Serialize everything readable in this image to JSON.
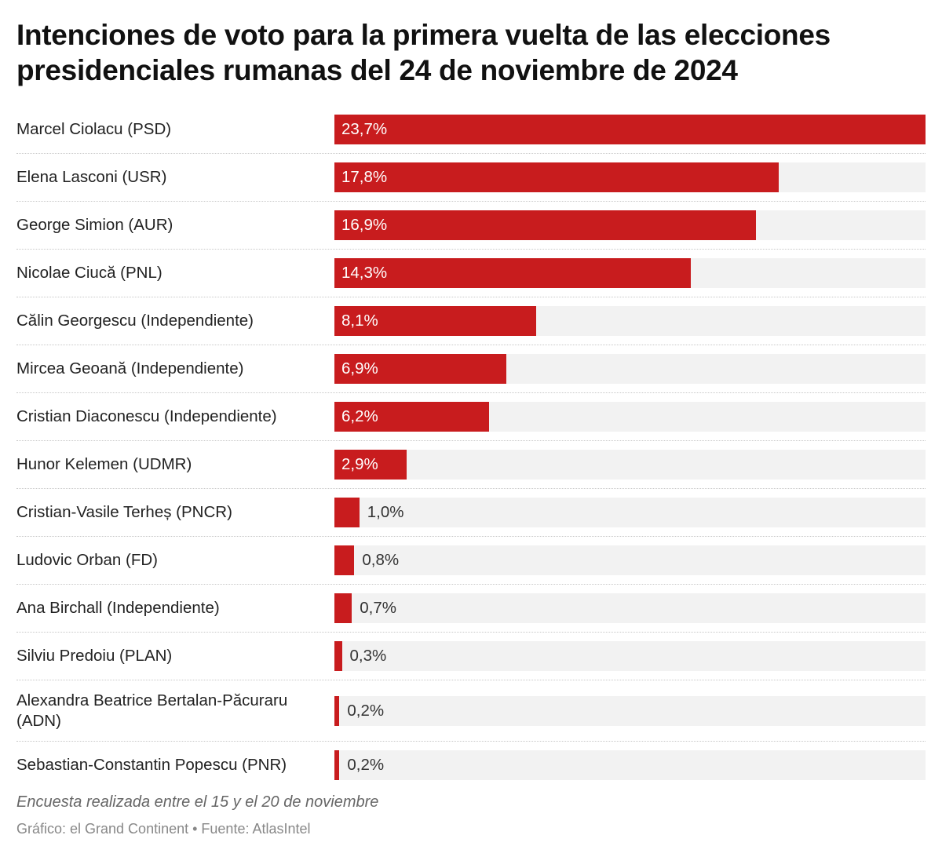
{
  "title": "Intenciones de voto para la primera vuelta de las elecciones presidenciales rumanas del 24 de noviembre de 2024",
  "note": "Encuesta realizada entre el 15 y el 20 de noviembre",
  "source": "Gráfico: el Grand Continent • Fuente: AtlasIntel",
  "colors": {
    "bar": "#c81c1e",
    "track": "#f2f2f2"
  },
  "chart_data": {
    "type": "bar",
    "orientation": "horizontal",
    "title": "Intenciones de voto para la primera vuelta de las elecciones presidenciales rumanas del 24 de noviembre de 2024",
    "xlabel": "",
    "ylabel": "",
    "unit": "%",
    "xlim": [
      0,
      23.7
    ],
    "grid": false,
    "categories": [
      "Marcel Ciolacu (PSD)",
      "Elena Lasconi (USR)",
      "George Simion (AUR)",
      "Nicolae Ciucă (PNL)",
      "Călin Georgescu (Independiente)",
      "Mircea Geoană (Independiente)",
      "Cristian Diaconescu (Independiente)",
      "Hunor Kelemen (UDMR)",
      "Cristian-Vasile Terheș (PNCR)",
      "Ludovic Orban (FD)",
      "Ana Birchall (Independiente)",
      "Silviu Predoiu (PLAN)",
      "Alexandra Beatrice Bertalan-Păcuraru (ADN)",
      "Sebastian-Constantin Popescu (PNR)"
    ],
    "values": [
      23.7,
      17.8,
      16.9,
      14.3,
      8.1,
      6.9,
      6.2,
      2.9,
      1.0,
      0.8,
      0.7,
      0.3,
      0.2,
      0.2
    ],
    "labels": [
      "23,7%",
      "17,8%",
      "16,9%",
      "14,3%",
      "8,1%",
      "6,9%",
      "6,2%",
      "2,9%",
      "1,0%",
      "0,8%",
      "0,7%",
      "0,3%",
      "0,2%",
      "0,2%"
    ]
  }
}
